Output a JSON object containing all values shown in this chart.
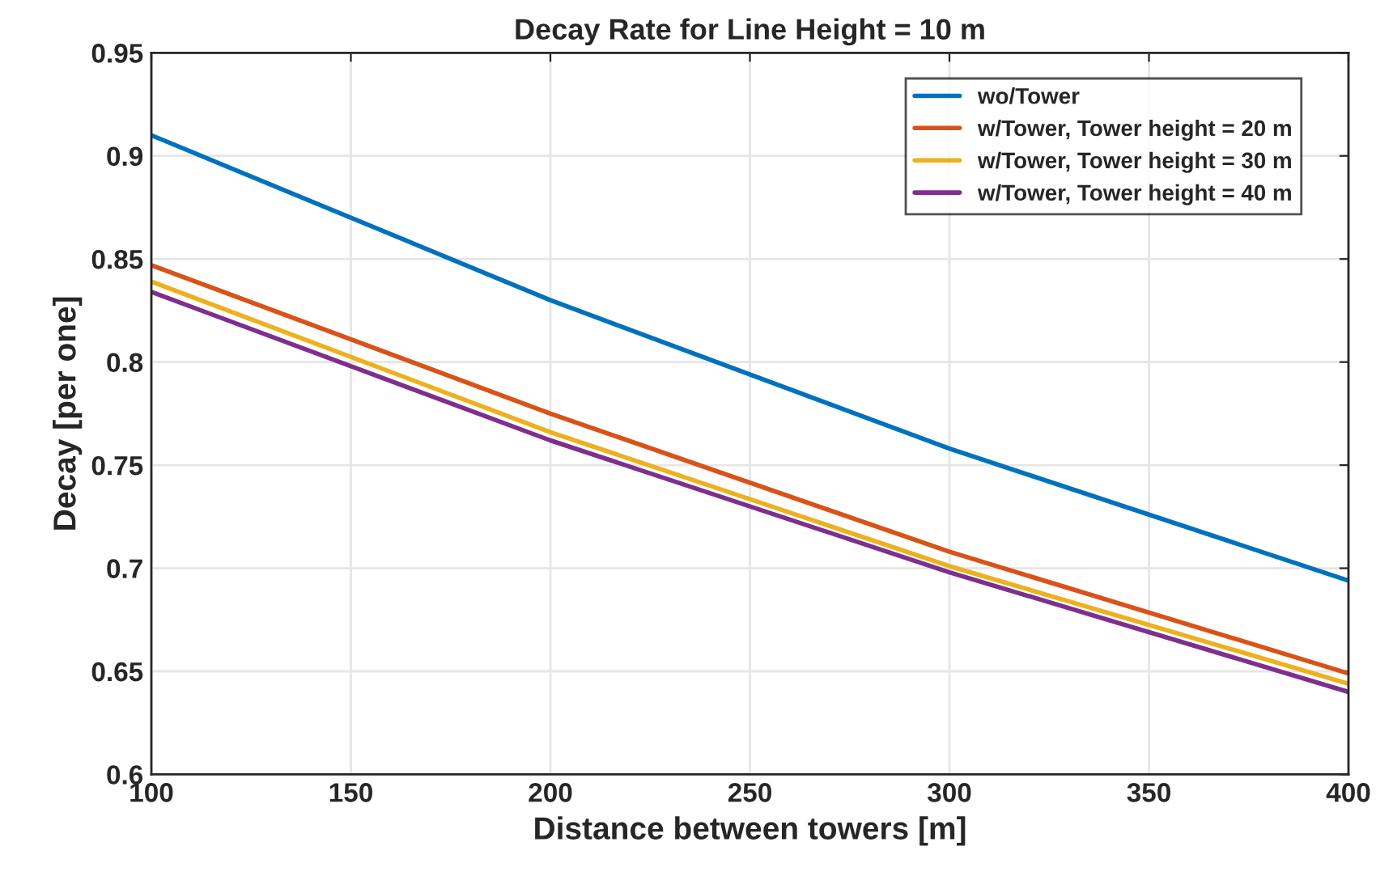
{
  "chart_data": {
    "type": "line",
    "title": "Decay Rate for Line Height = 10 m",
    "xlabel": "Distance between towers [m]",
    "ylabel": "Decay [per one]",
    "x": [
      100,
      200,
      300,
      400
    ],
    "series": [
      {
        "name": "wo/Tower",
        "color": "#0072bd",
        "values": [
          0.91,
          0.83,
          0.758,
          0.694
        ]
      },
      {
        "name": "w/Tower, Tower height = 20 m",
        "color": "#d95319",
        "values": [
          0.847,
          0.775,
          0.708,
          0.649
        ]
      },
      {
        "name": "w/Tower, Tower height = 30 m",
        "color": "#edb120",
        "values": [
          0.839,
          0.766,
          0.701,
          0.644
        ]
      },
      {
        "name": "w/Tower, Tower height = 40 m",
        "color": "#7e2f8e",
        "values": [
          0.834,
          0.762,
          0.698,
          0.64
        ]
      }
    ],
    "xlim": [
      100,
      400
    ],
    "xticks": [
      100,
      150,
      200,
      250,
      300,
      350,
      400
    ],
    "ylim": [
      0.6,
      0.95
    ],
    "yticks": [
      0.6,
      0.65,
      0.7,
      0.75,
      0.8,
      0.85,
      0.9,
      0.95
    ],
    "grid": true,
    "legend": "top right",
    "marker": "none",
    "line_style": "solid"
  }
}
